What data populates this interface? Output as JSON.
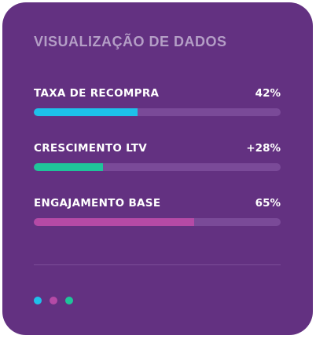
{
  "card": {
    "title": "VISUALIZAÇÃO DE DADOS",
    "metrics": [
      {
        "label": "TAXA DE RECOMPRA",
        "value": "42%",
        "fill_fraction": 0.42,
        "color": "#1ec0ea"
      },
      {
        "label": "CRESCIMENTO LTV",
        "value": "+28%",
        "fill_fraction": 0.28,
        "color": "#1fc49a"
      },
      {
        "label": "ENGAJAMENTO BASE",
        "value": "65%",
        "fill_fraction": 0.65,
        "color": "#b54aa6"
      }
    ],
    "carousel": {
      "dots": [
        {
          "color": "#1ec0ea"
        },
        {
          "color": "#b54aa6"
        },
        {
          "color": "#1fc49a"
        }
      ]
    }
  },
  "colors": {
    "card_background": "#633181",
    "track": "#7a4a98",
    "title": "#b49ec6"
  }
}
